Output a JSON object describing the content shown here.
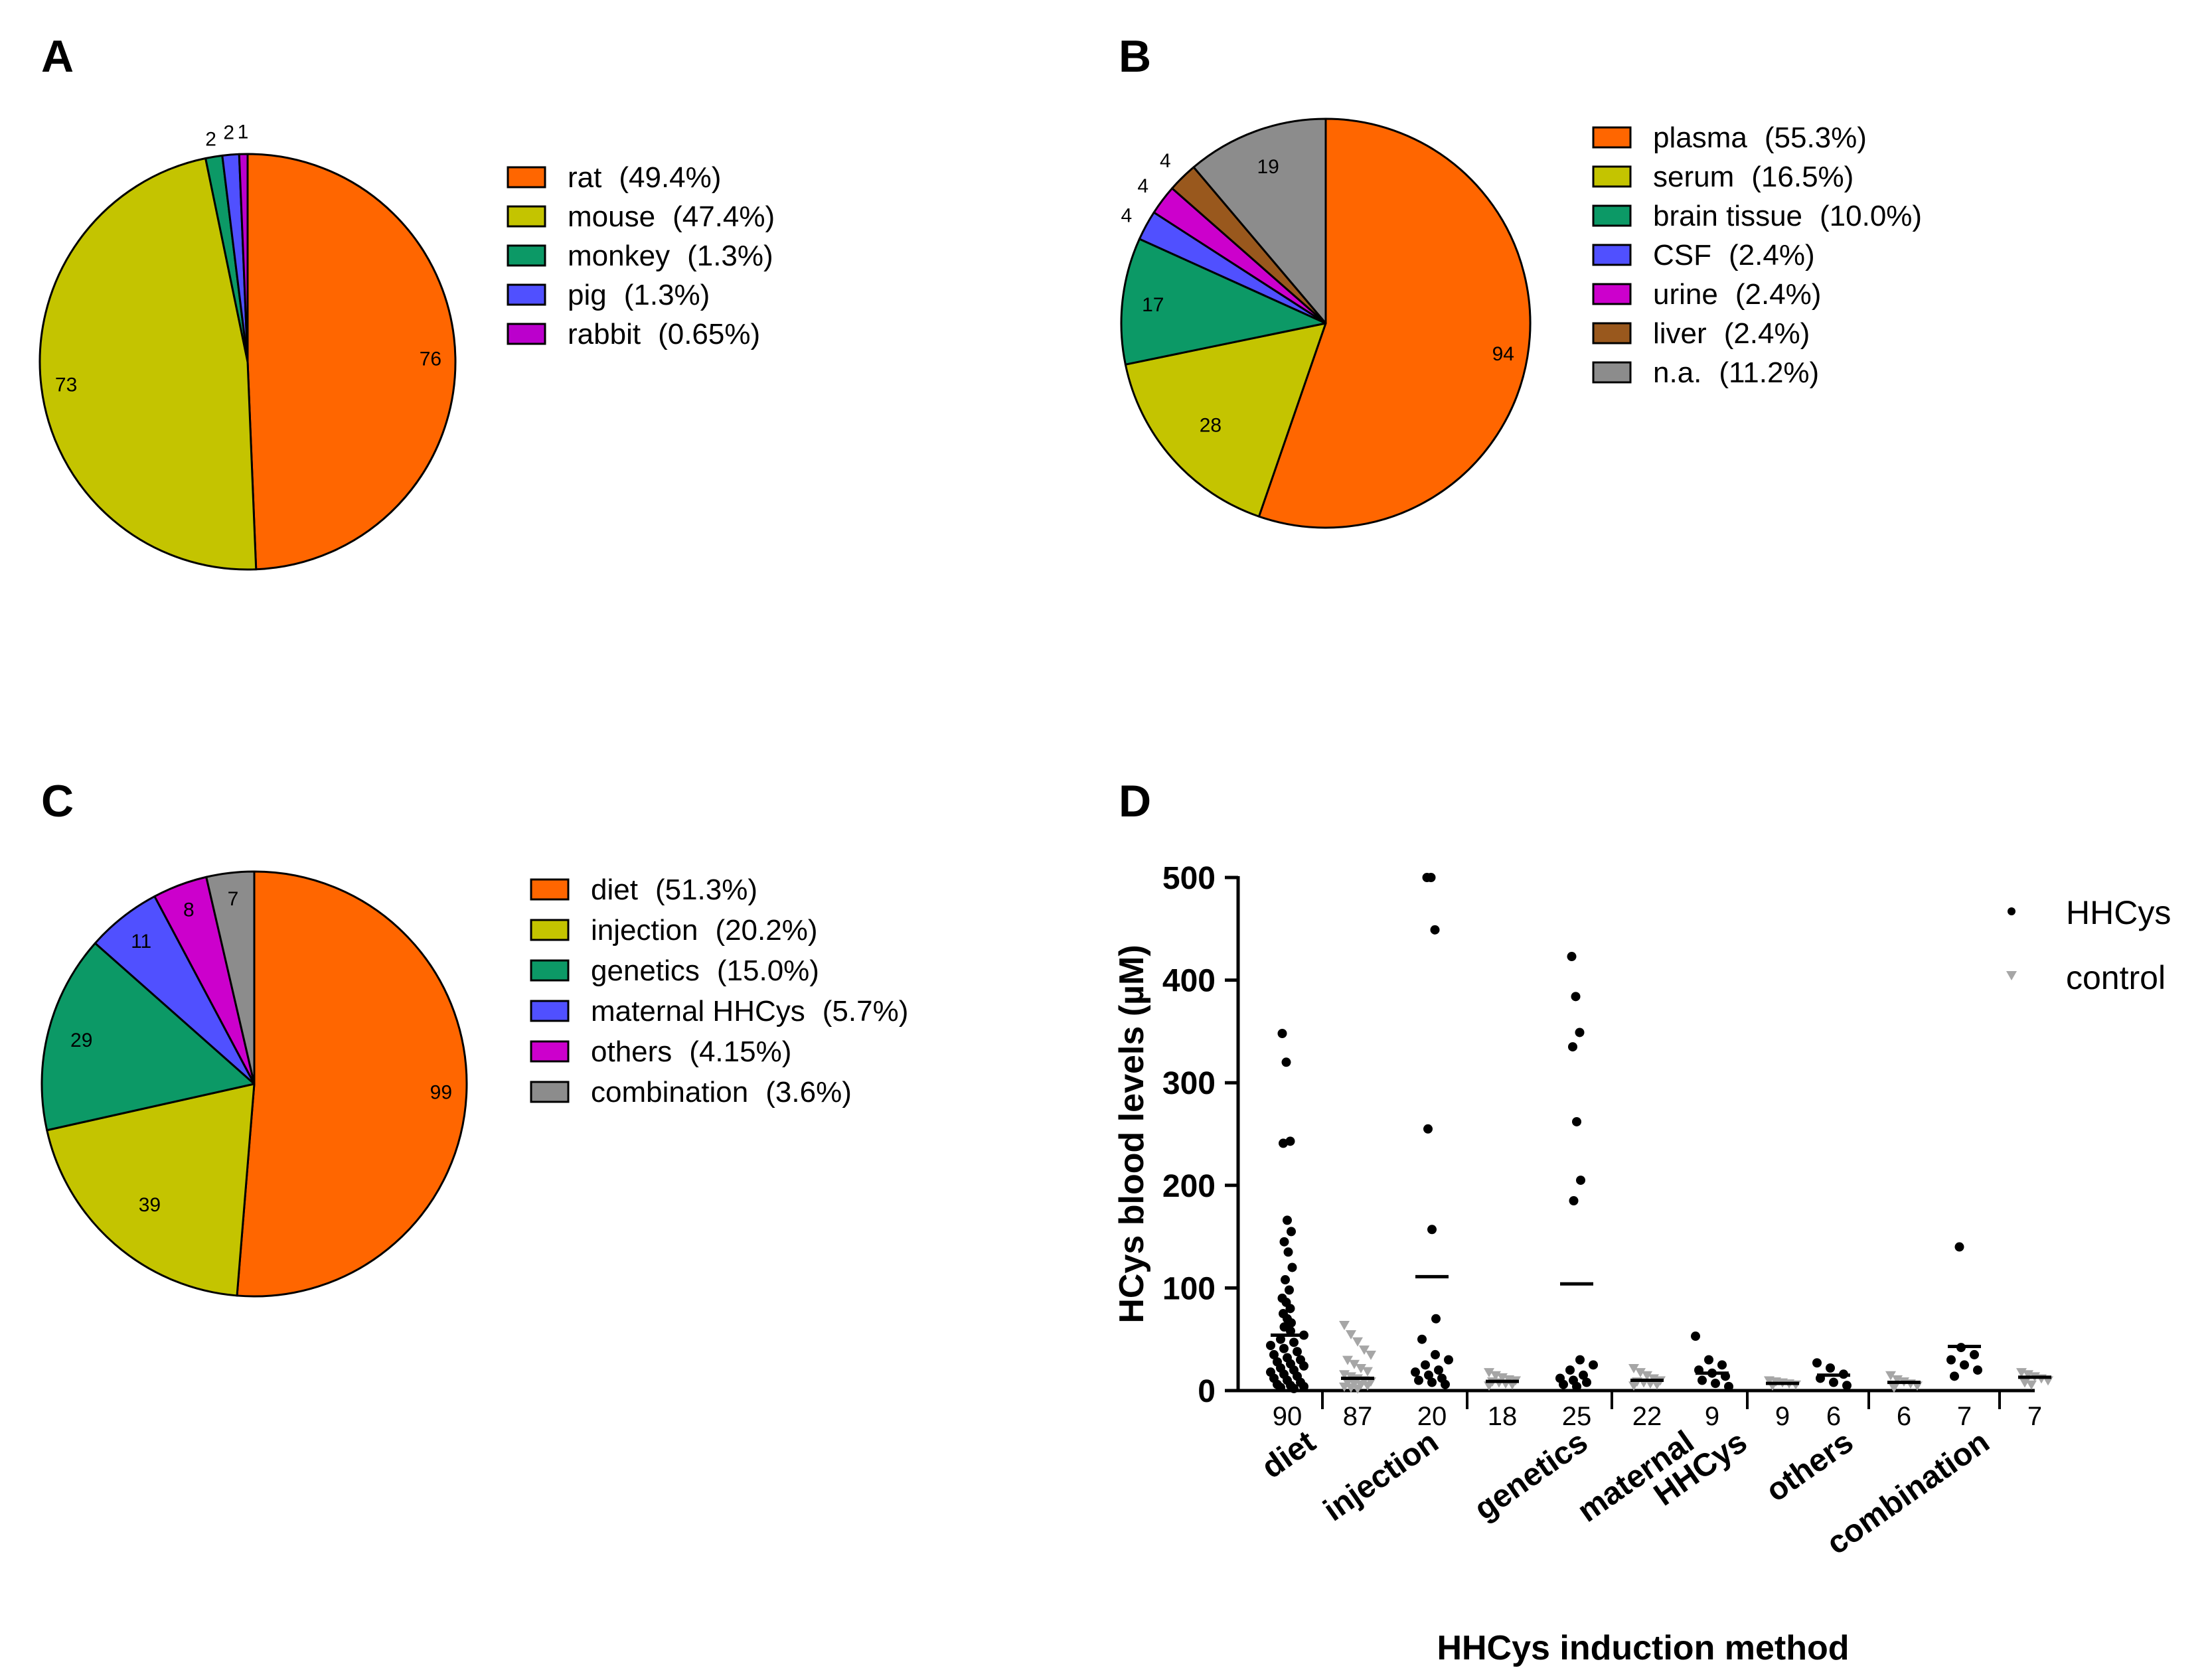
{
  "chart_data": [
    {
      "panel": "A",
      "type": "pie",
      "slices": [
        {
          "label": "rat",
          "count": 76,
          "percent": "(49.4%)",
          "color": "#ff6600"
        },
        {
          "label": "mouse",
          "count": 73,
          "percent": "(47.4%)",
          "color": "#c4c400"
        },
        {
          "label": "monkey",
          "count": 2,
          "percent": "(1.3%)",
          "color": "#0c9966"
        },
        {
          "label": "pig",
          "count": 2,
          "percent": "(1.3%)",
          "color": "#5050ff"
        },
        {
          "label": "rabbit",
          "count": 1,
          "percent": "(0.65%)",
          "color": "#bb00cc"
        }
      ]
    },
    {
      "panel": "B",
      "type": "pie",
      "slices": [
        {
          "label": "plasma",
          "count": 94,
          "percent": "(55.3%)",
          "color": "#ff6600"
        },
        {
          "label": "serum",
          "count": 28,
          "percent": "(16.5%)",
          "color": "#c4c400"
        },
        {
          "label": "brain tissue",
          "count": 17,
          "percent": "(10.0%)",
          "color": "#0c9966"
        },
        {
          "label": "CSF",
          "count": 4,
          "percent": "(2.4%)",
          "color": "#5050ff"
        },
        {
          "label": "urine",
          "count": 4,
          "percent": "(2.4%)",
          "color": "#cc00cc"
        },
        {
          "label": "liver",
          "count": 4,
          "percent": "(2.4%)",
          "color": "#99581d"
        },
        {
          "label": "n.a.",
          "count": 19,
          "percent": "(11.2%)",
          "color": "#8c8c8c"
        }
      ]
    },
    {
      "panel": "C",
      "type": "pie",
      "slices": [
        {
          "label": "diet",
          "count": 99,
          "percent": "(51.3%)",
          "color": "#ff6600"
        },
        {
          "label": "injection",
          "count": 39,
          "percent": "(20.2%)",
          "color": "#c4c400"
        },
        {
          "label": "genetics",
          "count": 29,
          "percent": "(15.0%)",
          "color": "#0c9966"
        },
        {
          "label": "maternal HHCys",
          "count": 11,
          "percent": "(5.7%)",
          "color": "#5050ff"
        },
        {
          "label": "others",
          "count": 8,
          "percent": "(4.15%)",
          "color": "#cc00cc"
        },
        {
          "label": "combination",
          "count": 7,
          "percent": "(3.6%)",
          "color": "#8c8c8c"
        }
      ]
    },
    {
      "panel": "D",
      "type": "scatter",
      "title": "",
      "xlabel": "HHCys induction method",
      "ylabel": "HCys blood levels (µM)",
      "ylim": [
        0,
        500
      ],
      "yticks": [
        0,
        100,
        200,
        300,
        400,
        500
      ],
      "legend": [
        {
          "name": "HHCys",
          "color": "#000000",
          "marker": "circle"
        },
        {
          "name": "control",
          "color": "#a6a6a6",
          "marker": "triangle-down"
        }
      ],
      "groups": [
        {
          "category": [
            "diet"
          ],
          "hhcys_n": "90",
          "control_n": "87",
          "hhcys_mean": 54,
          "control_mean": 12,
          "hhcys": [
            348,
            320,
            243,
            241,
            166,
            155,
            145,
            135,
            120,
            108,
            98,
            90,
            86,
            80,
            75,
            70,
            66,
            62,
            58,
            54,
            50,
            47,
            44,
            41,
            38,
            35,
            32,
            30,
            28,
            26,
            24,
            22,
            20,
            18,
            16,
            14,
            12,
            10,
            8,
            6,
            5,
            4,
            3,
            2
          ],
          "control": [
            64,
            55,
            48,
            40,
            35,
            30,
            26,
            22,
            19,
            16,
            14,
            12,
            10,
            9,
            8,
            7,
            6,
            5,
            4,
            3,
            2
          ]
        },
        {
          "category": [
            "injection"
          ],
          "hhcys_n": "20",
          "control_n": "18",
          "hhcys_mean": 111,
          "control_mean": 9,
          "hhcys": [
            500,
            500,
            449,
            255,
            157,
            70,
            50,
            35,
            30,
            25,
            20,
            18,
            15,
            12,
            10,
            8,
            6
          ],
          "control": [
            18,
            15,
            13,
            11,
            10,
            9,
            8,
            7,
            6,
            5
          ]
        },
        {
          "category": [
            "genetics"
          ],
          "hhcys_n": "25",
          "control_n": "22",
          "hhcys_mean": 104,
          "control_mean": 10,
          "hhcys": [
            423,
            384,
            349,
            335,
            262,
            205,
            185,
            30,
            25,
            20,
            15,
            12,
            10,
            8,
            6,
            4
          ],
          "control": [
            22,
            18,
            15,
            12,
            10,
            9,
            8,
            7,
            6,
            5
          ]
        },
        {
          "category": [
            "maternal",
            "HHCys"
          ],
          "hhcys_n": "9",
          "control_n": "9",
          "hhcys_mean": 17,
          "control_mean": 7,
          "hhcys": [
            53,
            30,
            25,
            20,
            17,
            14,
            10,
            7,
            4
          ],
          "control": [
            10,
            9,
            8,
            7,
            6,
            5
          ]
        },
        {
          "category": [
            "others"
          ],
          "hhcys_n": "6",
          "control_n": "6",
          "hhcys_mean": 15,
          "control_mean": 8,
          "hhcys": [
            27,
            22,
            16,
            12,
            8,
            5
          ],
          "control": [
            15,
            11,
            9,
            7,
            5,
            3
          ]
        },
        {
          "category": [
            "combination"
          ],
          "hhcys_n": "7",
          "control_n": "7",
          "hhcys_mean": 43,
          "control_mean": 13,
          "hhcys": [
            140,
            42,
            35,
            30,
            25,
            20,
            14
          ],
          "control": [
            18,
            16,
            14,
            12,
            10,
            8,
            6
          ]
        }
      ]
    }
  ]
}
